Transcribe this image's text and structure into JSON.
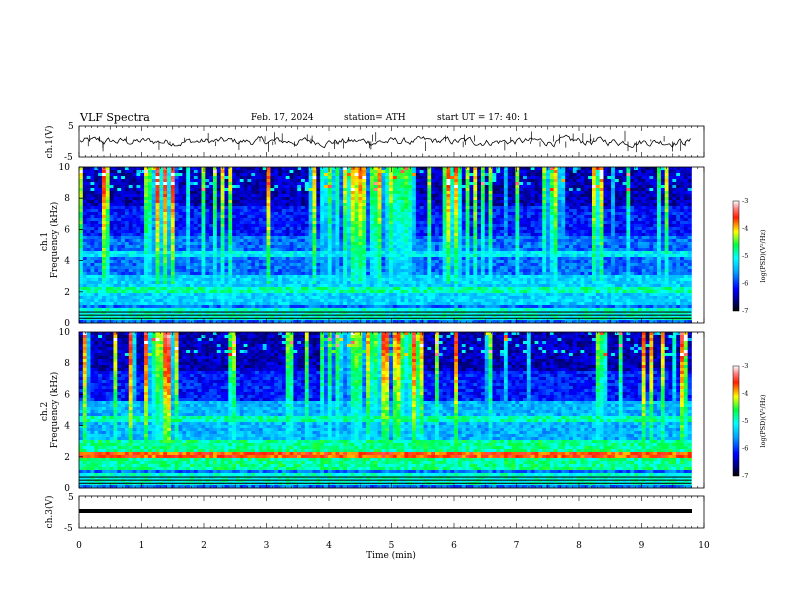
{
  "header": {
    "title": "VLF Spectra",
    "date": "Feb. 17, 2024",
    "station": "station= ATH",
    "start_ut": "start UT =  17: 40: 1"
  },
  "chart_data": [
    {
      "type": "line",
      "panel": "ch1-waveform",
      "ylabel": "ch.1(V)",
      "ylim": [
        -5,
        5
      ],
      "yticks": [
        "5",
        "-5"
      ],
      "xlim": [
        0,
        10
      ]
    },
    {
      "type": "heatmap",
      "panel": "ch1-spectrogram",
      "ylabel": "ch.1\nFrequency (kHz)",
      "ylim": [
        0,
        10
      ],
      "yticks": [
        "0",
        "2",
        "4",
        "6",
        "8",
        "10"
      ],
      "xlim": [
        0,
        10
      ],
      "data_extent_min": 9.8,
      "colorbar": {
        "label": "log(PSD)(V²/Hz)",
        "range": [
          -7,
          -3
        ],
        "ticks": [
          "-3",
          "-4",
          "-5",
          "-6",
          "-7"
        ]
      }
    },
    {
      "type": "heatmap",
      "panel": "ch2-spectrogram",
      "ylabel": "ch.2\nFrequency (kHz)",
      "ylim": [
        0,
        10
      ],
      "yticks": [
        "0",
        "2",
        "4",
        "6",
        "8",
        "10"
      ],
      "xlim": [
        0,
        10
      ],
      "data_extent_min": 9.8,
      "colorbar": {
        "label": "log(PSD)(V²/Hz)",
        "range": [
          -7,
          -3
        ],
        "ticks": [
          "-3",
          "-4",
          "-5",
          "-6",
          "-7"
        ]
      }
    },
    {
      "type": "line",
      "panel": "ch3-waveform",
      "ylabel": "ch.3(V)",
      "ylim": [
        -5,
        5
      ],
      "yticks": [
        "5",
        "-5"
      ],
      "xlim": [
        0,
        10
      ],
      "xlabel": "Time (min)",
      "xticks": [
        "0",
        "1",
        "2",
        "3",
        "4",
        "5",
        "6",
        "7",
        "8",
        "9",
        "10"
      ]
    }
  ]
}
